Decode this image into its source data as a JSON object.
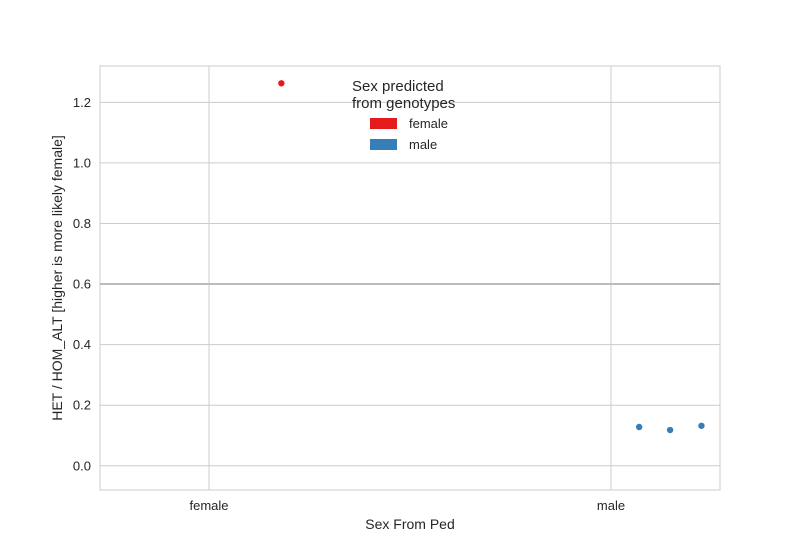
{
  "chart_data": {
    "type": "scatter",
    "title": "",
    "xlabel": "Sex From Ped",
    "ylabel": "HET / HOM_ALT [higher is more likely female]",
    "categories": [
      "female",
      "male"
    ],
    "ylim": [
      -0.08,
      1.32
    ],
    "yticks": [
      0.0,
      0.2,
      0.4,
      0.6,
      0.8,
      1.0,
      1.2
    ],
    "ytick_labels": [
      "0.0",
      "0.2",
      "0.4",
      "0.6",
      "0.8",
      "1.0",
      "1.2"
    ],
    "grid": true,
    "threshold_line": 0.6,
    "legend": {
      "title_lines": [
        "Sex predicted",
        "from genotypes"
      ],
      "placement": "top-center",
      "entries": [
        {
          "label": "female",
          "color": "#e41a1c"
        },
        {
          "label": "male",
          "color": "#377eb8"
        }
      ]
    },
    "series": [
      {
        "name": "female",
        "color": "#e41a1c",
        "points": [
          {
            "category": "female",
            "offset": 0.18,
            "y": 1.263
          }
        ]
      },
      {
        "name": "male",
        "color": "#377eb8",
        "points": [
          {
            "category": "male",
            "offset": 0.07,
            "y": 0.128
          },
          {
            "category": "male",
            "offset": 0.147,
            "y": 0.118
          },
          {
            "category": "male",
            "offset": 0.225,
            "y": 0.132
          }
        ]
      }
    ]
  }
}
